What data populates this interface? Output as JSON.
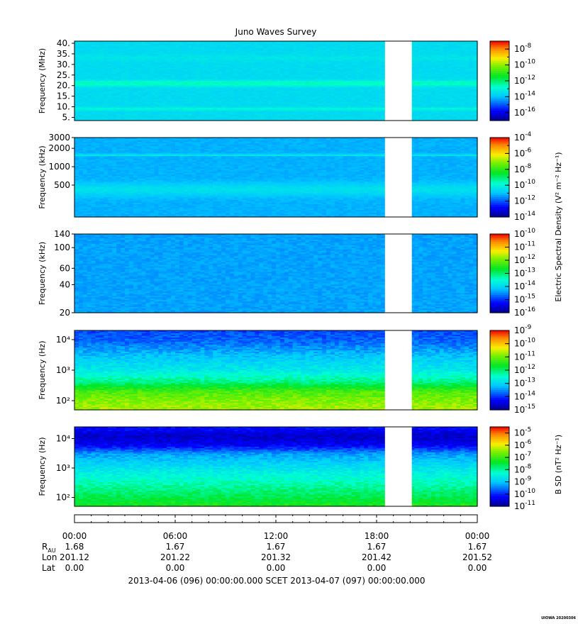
{
  "chart_data": {
    "type": "heatmap",
    "title": "Juno Waves Survey",
    "time_range": [
      "2013-04-06 00:00",
      "2013-04-07 00:00"
    ],
    "data_gap": {
      "start_hours": 18.5,
      "end_hours": 20.1
    },
    "panels": [
      {
        "id": "hfr-high",
        "ylabel": "Frequency (MHz)",
        "yscale": "linear",
        "ylim": [
          3.5,
          41
        ],
        "yticks": [
          5,
          10,
          15,
          20,
          25,
          30,
          35,
          40
        ],
        "ytick_labels": [
          "5.",
          "10.",
          "15.",
          "20.",
          "25.",
          "30.",
          "35.",
          "40."
        ],
        "colorbar": {
          "log_min": -17,
          "log_max": -7,
          "ticks": [
            -16,
            -14,
            -12,
            -10,
            -8
          ]
        },
        "background_log": -13.6,
        "features": [
          {
            "freq": 21.0,
            "log_level": -12.6,
            "width": 0.035
          },
          {
            "freq": 9.0,
            "log_level": -13.0,
            "width": 0.02
          },
          {
            "freq": 33.0,
            "log_level": -13.4,
            "width": 0.04
          }
        ]
      },
      {
        "id": "hfr-low",
        "ylabel": "Frequency (kHz)",
        "yscale": "log",
        "ylim": [
          150,
          3000
        ],
        "yticks": [
          500,
          1000,
          2000,
          3000
        ],
        "ytick_labels": [
          "500",
          "1000",
          "2000",
          "3000"
        ],
        "colorbar": {
          "log_min": -14,
          "log_max": -4,
          "ticks": [
            -14,
            -12,
            -10,
            -8,
            -6,
            -4
          ]
        },
        "background_log": -11.2,
        "features": [
          {
            "freq": 420,
            "log_level": -10.5,
            "width": 0.08
          },
          {
            "freq": 1550,
            "log_level": -10.3,
            "width": 0.012
          },
          {
            "freq": 1300,
            "log_level": -11.6,
            "width": 0.02
          },
          {
            "freq": 170,
            "log_level": -11.8,
            "width": 0.05
          }
        ]
      },
      {
        "id": "lfr-high",
        "ylabel": "Frequency (kHz)",
        "yscale": "log",
        "ylim": [
          20,
          140
        ],
        "yticks": [
          20,
          40,
          60,
          100,
          140
        ],
        "ytick_labels": [
          "20",
          "40",
          "60",
          "100",
          "140"
        ],
        "colorbar": {
          "log_min": -16,
          "log_max": -10,
          "ticks": [
            -16,
            -15,
            -14,
            -13,
            -12,
            -11,
            -10
          ]
        },
        "background_log": -14.4,
        "features": []
      },
      {
        "id": "lfr-low",
        "ylabel": "Frequency (Hz)",
        "yscale": "log",
        "ylim": [
          50,
          20000
        ],
        "yticks": [
          100,
          1000,
          10000
        ],
        "ytick_labels": [
          "10²",
          "10³",
          "10⁴"
        ],
        "colorbar": {
          "log_min": -15,
          "log_max": -9,
          "ticks": [
            -15,
            -14,
            -13,
            -12,
            -11,
            -10,
            -9
          ]
        },
        "profile": [
          {
            "freq": 50,
            "log_level": -10.7
          },
          {
            "freq": 100,
            "log_level": -10.9
          },
          {
            "freq": 200,
            "log_level": -11.2
          },
          {
            "freq": 400,
            "log_level": -12.1
          },
          {
            "freq": 1000,
            "log_level": -12.8
          },
          {
            "freq": 3000,
            "log_level": -13.2
          },
          {
            "freq": 8000,
            "log_level": -13.7
          },
          {
            "freq": 20000,
            "log_level": -13.9
          }
        ]
      },
      {
        "id": "magnetic",
        "ylabel": "Frequency (Hz)",
        "yscale": "log",
        "ylim": [
          50,
          25000
        ],
        "yticks": [
          100,
          1000,
          10000
        ],
        "ytick_labels": [
          "10²",
          "10³",
          "10⁴"
        ],
        "colorbar": {
          "log_min": -11,
          "log_max": -4.5,
          "ticks": [
            -11,
            -10,
            -9,
            -8,
            -7,
            -6,
            -5
          ]
        },
        "profile": [
          {
            "freq": 50,
            "log_level": -7.2
          },
          {
            "freq": 100,
            "log_level": -7.6
          },
          {
            "freq": 300,
            "log_level": -8.1
          },
          {
            "freq": 1000,
            "log_level": -8.7
          },
          {
            "freq": 3000,
            "log_level": -9.3
          },
          {
            "freq": 6000,
            "log_level": -10.3
          },
          {
            "freq": 12000,
            "log_level": -10.6
          },
          {
            "freq": 25000,
            "log_level": -10.1
          }
        ]
      }
    ],
    "colorbar_labels": {
      "electric": "Electric Spectral Density (V² m⁻² Hz⁻¹)",
      "magnetic": "B SD (nT² Hz⁻¹)"
    },
    "x_axis": {
      "tick_labels": [
        "00:00",
        "06:00",
        "12:00",
        "18:00",
        "00:00"
      ],
      "rows": [
        {
          "label": "R",
          "sub": "AU",
          "values": [
            "1.68",
            "1.67",
            "1.67",
            "1.67",
            "1.67"
          ]
        },
        {
          "label": "Lon",
          "sub": "",
          "values": [
            "201.12",
            "201.22",
            "201.32",
            "201.42",
            "201.52"
          ]
        },
        {
          "label": "Lat",
          "sub": "",
          "values": [
            "0.00",
            "0.00",
            "0.00",
            "0.00",
            "0.00"
          ]
        }
      ],
      "footer": "2013-04-06 (096) 00:00:00.000     SCET     2013-04-07 (097) 00:00:00.000"
    },
    "credit": "UIOWA 20200306"
  }
}
